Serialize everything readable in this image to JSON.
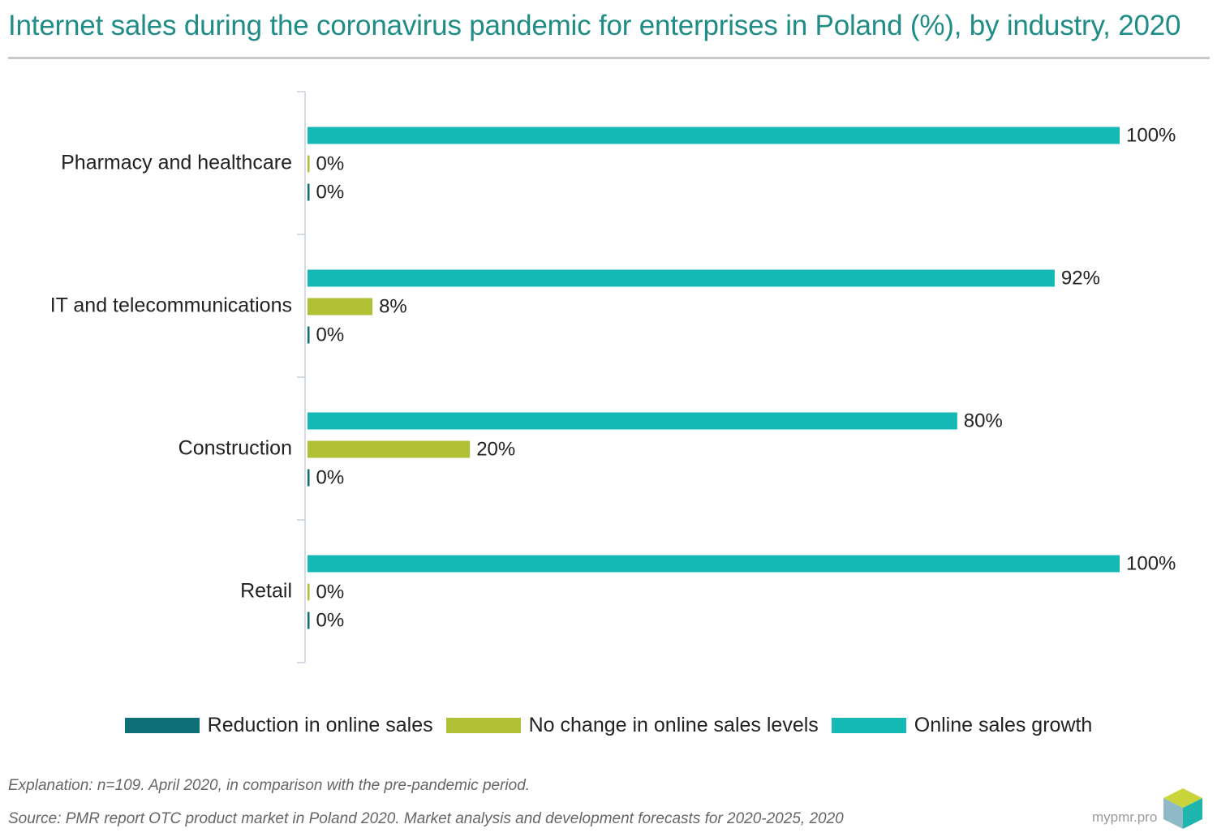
{
  "chart_data": {
    "type": "bar",
    "orientation": "horizontal",
    "title": "Internet sales during the coronavirus pandemic for enterprises in Poland (%), by industry, 2020",
    "categories": [
      "Pharmacy and healthcare",
      "IT and telecommunications",
      "Construction",
      "Retail"
    ],
    "series": [
      {
        "name": "Online sales growth",
        "values": [
          100,
          92,
          80,
          100
        ],
        "color": "#14b8b5"
      },
      {
        "name": "No change in online sales levels",
        "values": [
          0,
          8,
          20,
          0
        ],
        "color": "#afc035"
      },
      {
        "name": "Reduction in online sales",
        "values": [
          0,
          0,
          0,
          0
        ],
        "color": "#0e6f76"
      }
    ],
    "value_suffix": "%",
    "xlim": [
      0,
      100
    ],
    "grid": false,
    "legend_position": "bottom",
    "legend_order": [
      "Reduction in online sales",
      "No change in online sales levels",
      "Online sales growth"
    ]
  },
  "footer": {
    "explanation": "Explanation: n=109. April 2020, in comparison with the pre-pandemic period.",
    "source": "Source: PMR report OTC product market in Poland 2020. Market analysis and development forecasts for 2020-2025, 2020"
  },
  "brand": {
    "name": "mypmr.pro"
  }
}
